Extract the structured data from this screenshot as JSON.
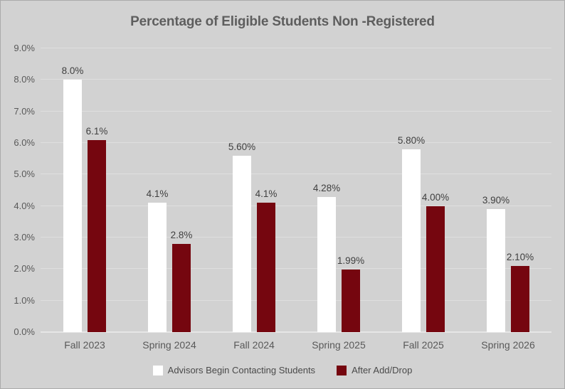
{
  "chart_data": {
    "type": "bar",
    "title": "Percentage of Eligible Students Non -Registered",
    "categories": [
      "Fall 2023",
      "Spring 2024",
      "Fall 2024",
      "Spring 2025",
      "Fall 2025",
      "Spring 2026"
    ],
    "series": [
      {
        "name": "Advisors Begin Contacting Students",
        "key": "advisors-begin-contacting",
        "color": "#ffffff",
        "values": [
          8.0,
          4.1,
          5.6,
          4.28,
          5.8,
          3.9
        ],
        "data_labels": [
          "8.0%",
          "4.1%",
          "5.60%",
          "4.28%",
          "5.80%",
          "3.90%"
        ]
      },
      {
        "name": "After Add/Drop",
        "key": "after-add-drop",
        "color": "#75060f",
        "values": [
          6.1,
          2.8,
          4.1,
          1.99,
          4.0,
          2.1
        ],
        "data_labels": [
          "6.1%",
          "2.8%",
          "4.1%",
          "1.99%",
          "4.00%",
          "2.10%"
        ]
      }
    ],
    "xlabel": "",
    "ylabel": "",
    "ylim": [
      0,
      9
    ],
    "ytick_step": 1,
    "ytick_labels": [
      "0.0%",
      "1.0%",
      "2.0%",
      "3.0%",
      "4.0%",
      "5.0%",
      "6.0%",
      "7.0%",
      "8.0%",
      "9.0%"
    ],
    "grid": true,
    "legend_position": "bottom"
  },
  "style": {
    "background_color": "#d2d2d2",
    "gridline_color": "#dfdfdf",
    "axis_line_color": "#e6e6e6",
    "title_color": "#5e5e5e",
    "tick_label_color": "#595959",
    "data_label_color": "#3f3f3f",
    "legend_text_color": "#4a4a4a",
    "series_white": "#ffffff",
    "series_maroon": "#75060f"
  }
}
